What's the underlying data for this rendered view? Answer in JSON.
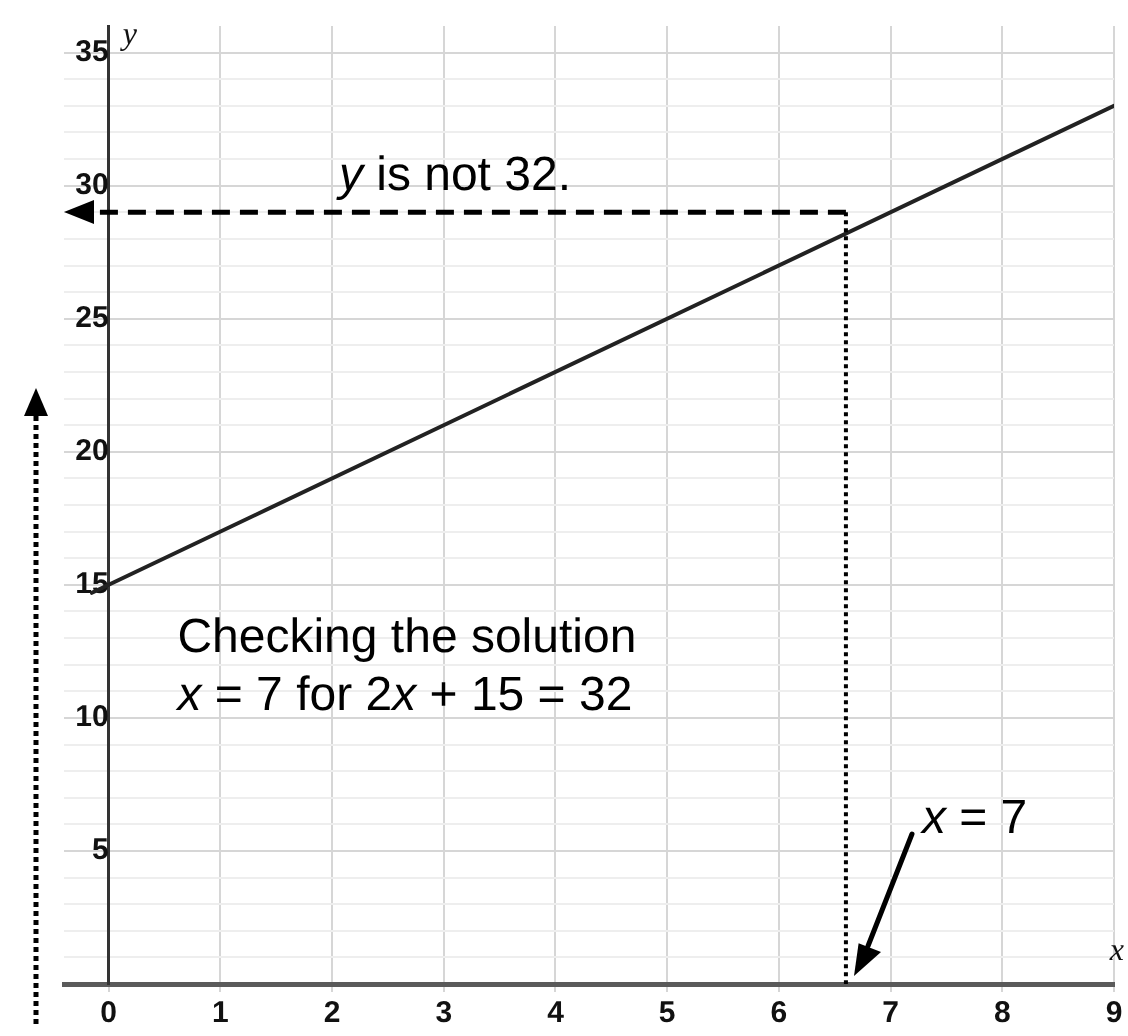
{
  "chart_data": {
    "type": "line",
    "xlabel": "x",
    "ylabel": "y",
    "series": [
      {
        "color": "#222222",
        "x": [
          -0.15,
          9
        ],
        "values": [
          14.7,
          33
        ]
      }
    ],
    "xlim": [
      -0.4,
      9
    ],
    "ylim": [
      0,
      36
    ],
    "xticks": [
      0,
      1,
      2,
      3,
      4,
      5,
      6,
      7,
      8,
      9
    ],
    "yticks": [
      {
        "value": 0,
        "label": null
      },
      {
        "value": 1,
        "label": null
      },
      {
        "value": 2,
        "label": null
      },
      {
        "value": 3,
        "label": null
      },
      {
        "value": 4,
        "label": null
      },
      5,
      {
        "value": 6,
        "label": null
      },
      {
        "value": 7,
        "label": null
      },
      {
        "value": 8,
        "label": null
      },
      {
        "value": 9,
        "label": null
      },
      10,
      {
        "value": 11,
        "label": null
      },
      {
        "value": 12,
        "label": null
      },
      {
        "value": 13,
        "label": null
      },
      {
        "value": 14,
        "label": null
      },
      15,
      {
        "value": 16,
        "label": null
      },
      {
        "value": 17,
        "label": null
      },
      {
        "value": 18,
        "label": null
      },
      {
        "value": 19,
        "label": null
      },
      20,
      {
        "value": 21,
        "label": null
      },
      {
        "value": 22,
        "label": null
      },
      {
        "value": 23,
        "label": null
      },
      {
        "value": 24,
        "label": null
      },
      25,
      {
        "value": 26,
        "label": null
      },
      {
        "value": 27,
        "label": null
      },
      {
        "value": 28,
        "label": null
      },
      {
        "value": 29,
        "label": null
      },
      30,
      {
        "value": 31,
        "label": null
      },
      {
        "value": 32,
        "label": null
      },
      {
        "value": 33,
        "label": null
      },
      {
        "value": 34,
        "label": null
      },
      35
    ],
    "grid": true,
    "marker": "none",
    "line_style": "solid",
    "ref_lines": [
      {
        "axis": "y",
        "value": 29,
        "label": "y is not 32.",
        "line_style": "dashed",
        "color": "#000000"
      },
      {
        "axis": "x",
        "value": 6.6,
        "label": "x = 7",
        "line_style": "dotted",
        "color": "#000000"
      }
    ],
    "annotations": [
      "Checking the solution\nx = 7 for 2x + 15 = 32"
    ]
  }
}
